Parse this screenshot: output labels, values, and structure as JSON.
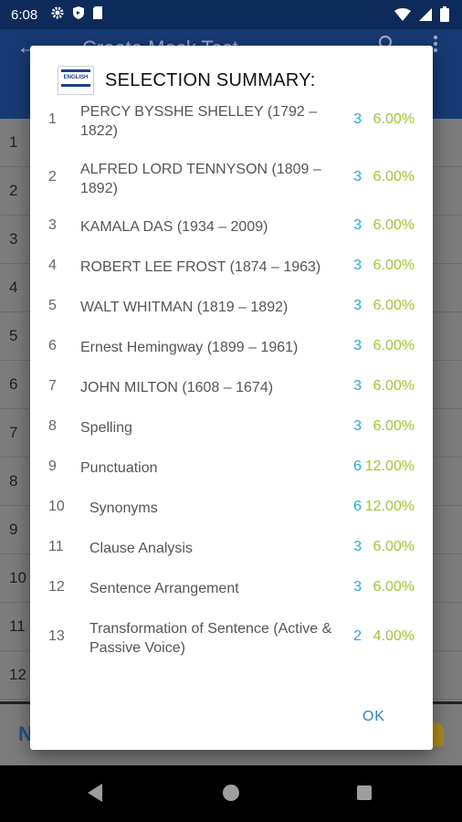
{
  "status": {
    "time": "6:08"
  },
  "appbar": {
    "title": "Create Mock Test"
  },
  "background_rows": [
    "1",
    "2",
    "3",
    "4",
    "5",
    "6",
    "7",
    "8",
    "9",
    "10",
    "11",
    "12"
  ],
  "background_bottom_label": "N",
  "dialog": {
    "title": "SELECTION SUMMARY:",
    "logo_text": "ENGLISH",
    "ok_label": "OK",
    "rows": [
      {
        "num": "1",
        "name": "PERCY BYSSHE SHELLEY (1792 – 1822)",
        "count": "3",
        "percent": "6.00%"
      },
      {
        "num": "2",
        "name": "ALFRED LORD TENNYSON (1809 – 1892)",
        "count": "3",
        "percent": "6.00%"
      },
      {
        "num": "3",
        "name": "KAMALA DAS (1934 – 2009)",
        "count": "3",
        "percent": "6.00%"
      },
      {
        "num": "4",
        "name": "ROBERT LEE FROST (1874 – 1963)",
        "count": "3",
        "percent": "6.00%"
      },
      {
        "num": "5",
        "name": "WALT WHITMAN (1819 – 1892)",
        "count": "3",
        "percent": "6.00%"
      },
      {
        "num": "6",
        "name": "Ernest Hemingway (1899 – 1961)",
        "count": "3",
        "percent": "6.00%"
      },
      {
        "num": "7",
        "name": "JOHN MILTON (1608 – 1674)",
        "count": "3",
        "percent": "6.00%"
      },
      {
        "num": "8",
        "name": "Spelling",
        "count": "3",
        "percent": "6.00%"
      },
      {
        "num": "9",
        "name": "Punctuation",
        "count": "6",
        "percent": "12.00%"
      },
      {
        "num": "10",
        "name": "Synonyms",
        "count": "6",
        "percent": "12.00%"
      },
      {
        "num": "11",
        "name": "Clause Analysis",
        "count": "3",
        "percent": "6.00%"
      },
      {
        "num": "12",
        "name": "Sentence Arrangement",
        "count": "3",
        "percent": "6.00%"
      },
      {
        "num": "13",
        "name": "Transformation of Sentence (Active & Passive Voice)",
        "count": "2",
        "percent": "4.00%"
      }
    ]
  }
}
